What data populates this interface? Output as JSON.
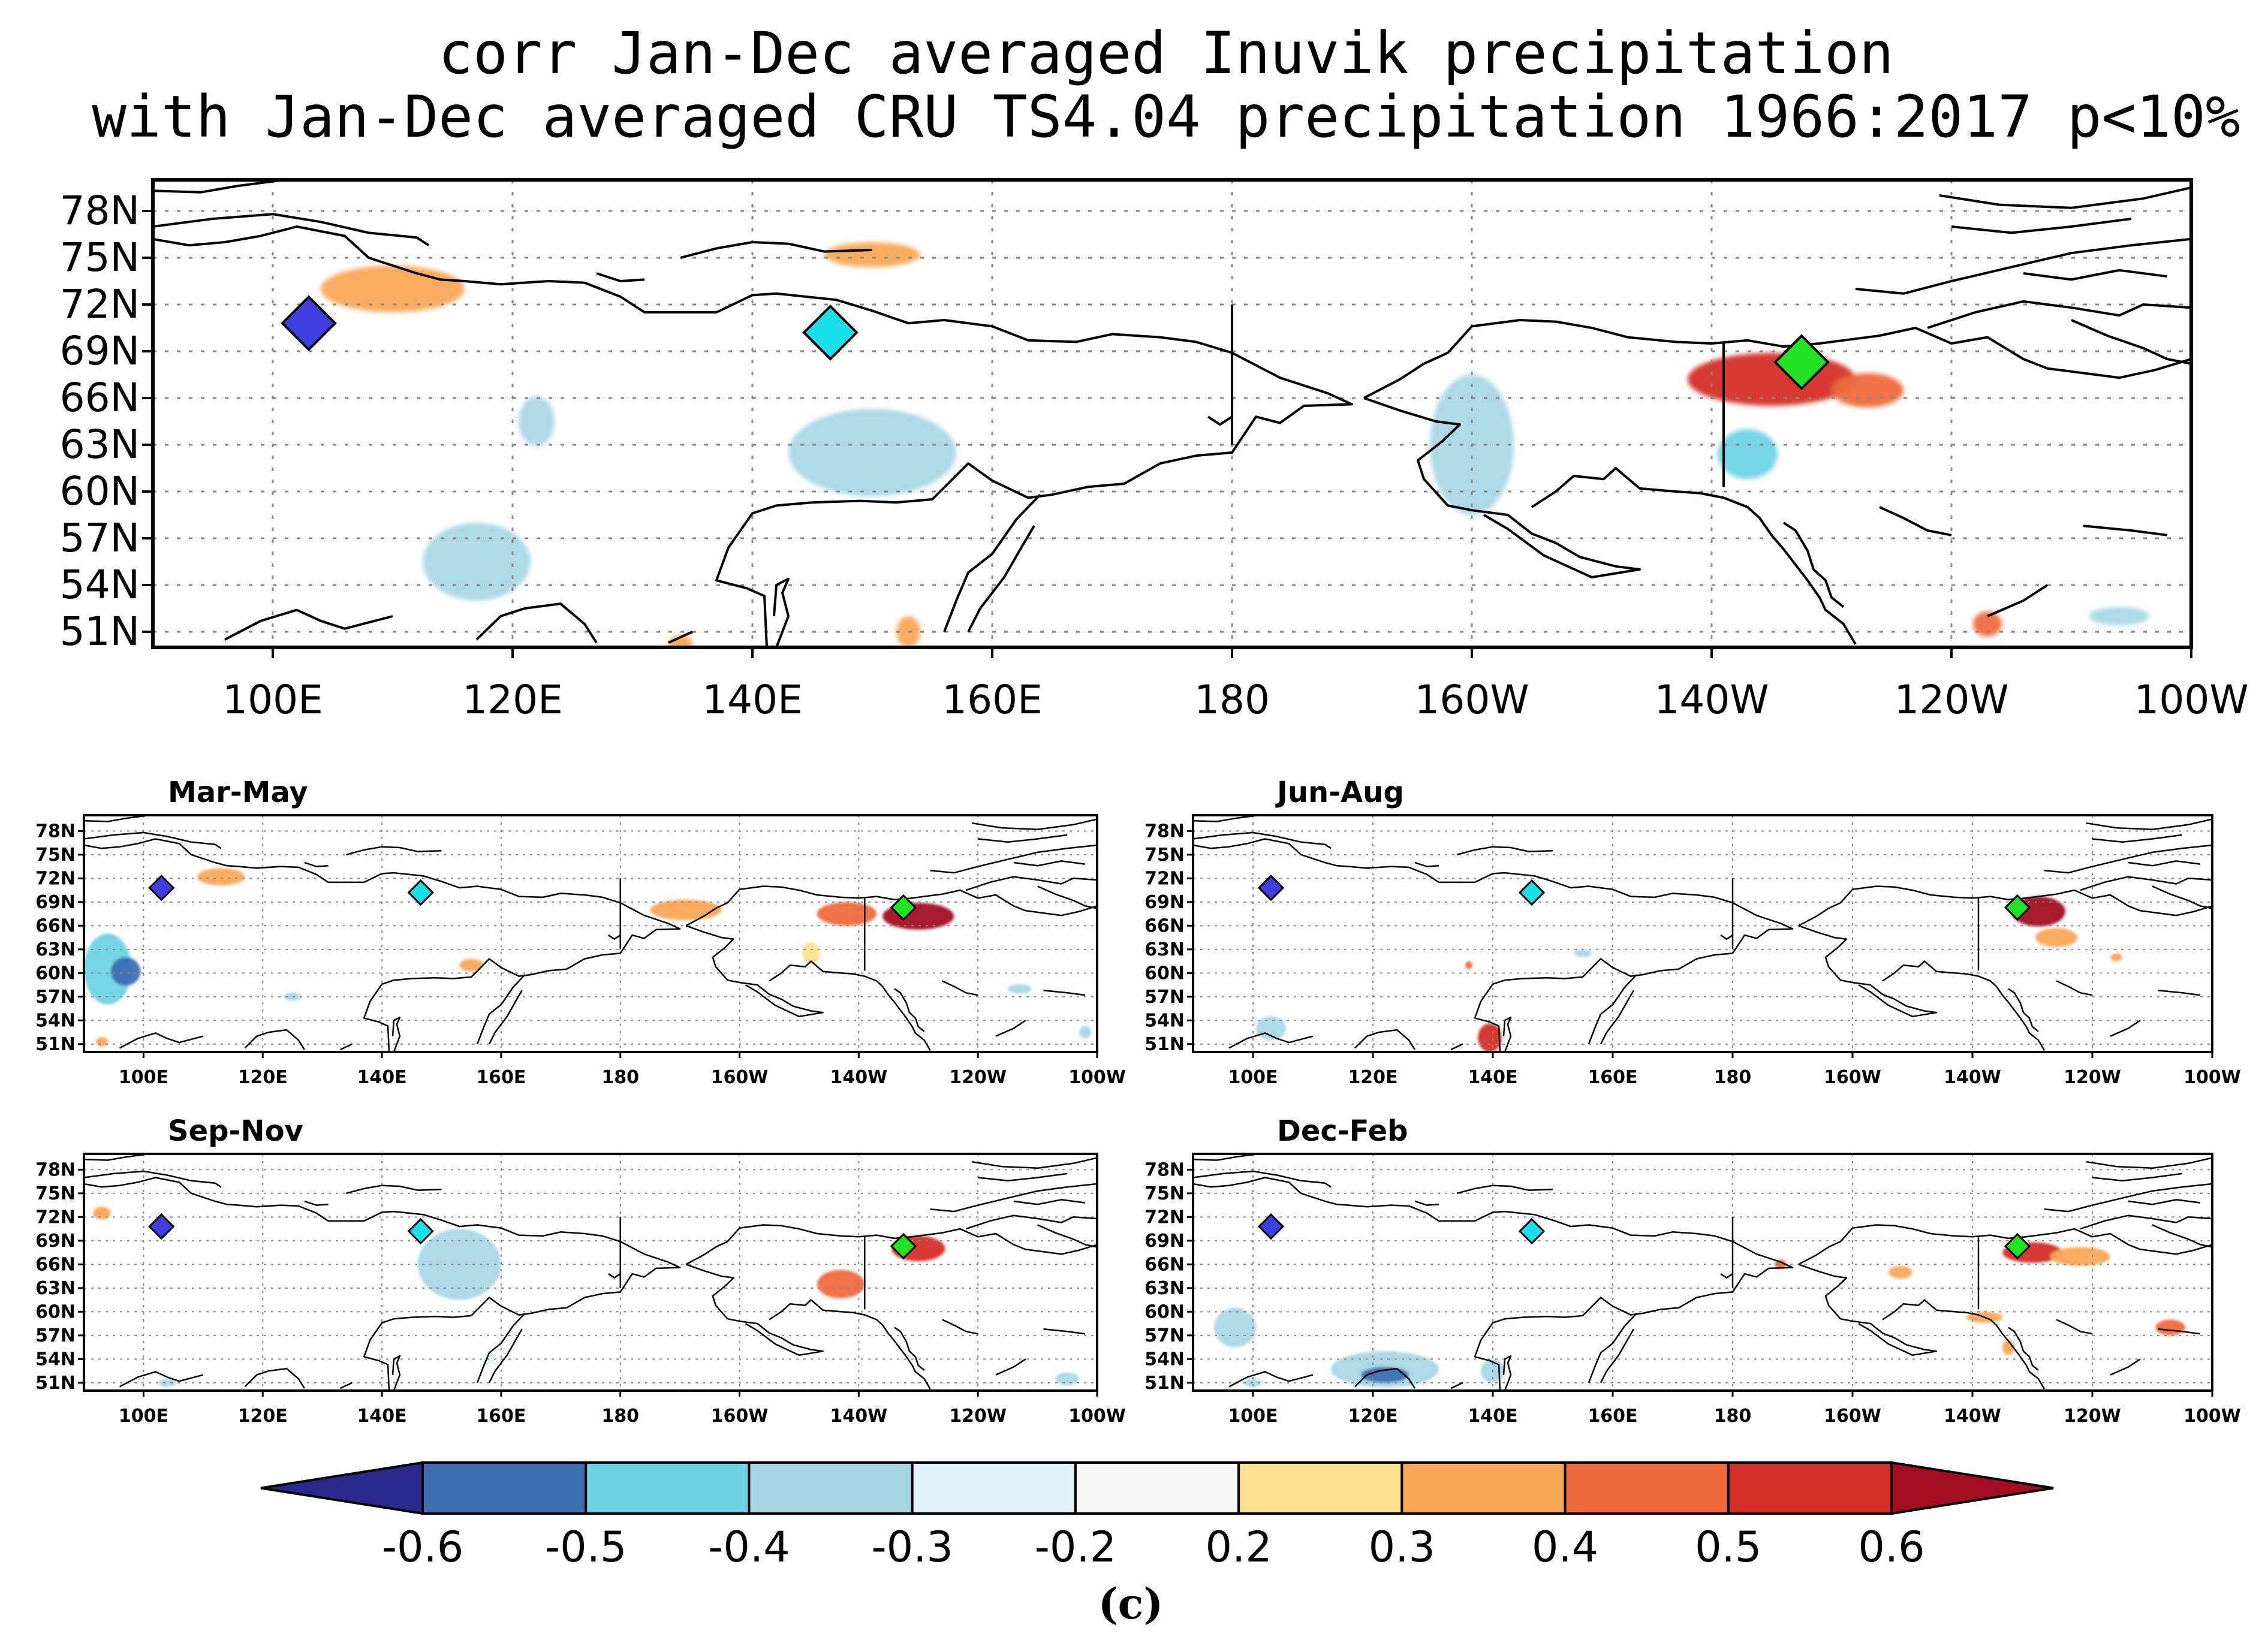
{
  "chart_data": {
    "type": "heatmap",
    "title_line1": "corr Jan-Dec averaged Inuvik precipitation",
    "title_line2": "with Jan-Dec averaged CRU TS4.04 precipitation 1966:2017 p<10%",
    "caption": "(c)",
    "lat_ticks": [
      "78N",
      "75N",
      "72N",
      "69N",
      "66N",
      "63N",
      "60N",
      "57N",
      "54N",
      "51N"
    ],
    "lat_values": [
      78,
      75,
      72,
      69,
      66,
      63,
      60,
      57,
      54,
      51
    ],
    "lon_ticks": [
      "100E",
      "120E",
      "140E",
      "160E",
      "180",
      "160W",
      "140W",
      "120W",
      "100W"
    ],
    "lon_values": [
      100,
      120,
      140,
      160,
      180,
      200,
      220,
      240,
      260
    ],
    "xlim": [
      90,
      260
    ],
    "ylim": [
      50,
      80
    ],
    "colorbar": {
      "levels": [
        "-0.6",
        "-0.5",
        "-0.4",
        "-0.3",
        "-0.2",
        "0.2",
        "0.3",
        "0.4",
        "0.5",
        "0.6"
      ],
      "colors": [
        "#2a2a8c",
        "#3e6fb2",
        "#6fd3e3",
        "#a9d6e5",
        "#e0f2f8",
        "#f7f7f7",
        "#fde08f",
        "#f9a656",
        "#ee6a3d",
        "#d42e28",
        "#a30d22"
      ]
    },
    "markers": [
      {
        "name": "blue-station",
        "lon": 103,
        "lat": 70.8,
        "color": "#3f3fe0"
      },
      {
        "name": "cyan-station",
        "lon": 146.5,
        "lat": 70.2,
        "color": "#18dfe8"
      },
      {
        "name": "green-station",
        "lon": 227.5,
        "lat": 68.3,
        "color": "#22e022"
      }
    ],
    "panels": [
      {
        "name": "annual",
        "label": "",
        "blobs": [
          {
            "lon": 110,
            "lat": 73.0,
            "rlon": 6,
            "rlat": 1.5,
            "c": 0.3
          },
          {
            "lon": 150,
            "lat": 75.2,
            "rlon": 4,
            "rlat": 0.8,
            "c": 0.3
          },
          {
            "lon": 122,
            "lat": 64.5,
            "rlon": 1.5,
            "rlat": 1.6,
            "c": -0.3
          },
          {
            "lon": 150,
            "lat": 62.5,
            "rlon": 7,
            "rlat": 2.8,
            "c": -0.3
          },
          {
            "lon": 117,
            "lat": 55.5,
            "rlon": 4.5,
            "rlat": 2.5,
            "c": -0.3
          },
          {
            "lon": 200,
            "lat": 63.0,
            "rlon": 3.5,
            "rlat": 4.5,
            "c": -0.3
          },
          {
            "lon": 225,
            "lat": 67.2,
            "rlon": 7,
            "rlat": 1.7,
            "c": 0.5
          },
          {
            "lon": 233,
            "lat": 66.5,
            "rlon": 3,
            "rlat": 1.1,
            "c": 0.4
          },
          {
            "lon": 223,
            "lat": 62.4,
            "rlon": 2.5,
            "rlat": 1.6,
            "c": -0.4
          },
          {
            "lon": 243,
            "lat": 51.5,
            "rlon": 1.2,
            "rlat": 0.8,
            "c": 0.4
          },
          {
            "lon": 254,
            "lat": 52.0,
            "rlon": 2.5,
            "rlat": 0.6,
            "c": -0.3
          },
          {
            "lon": 153,
            "lat": 51.0,
            "rlon": 1,
            "rlat": 1,
            "c": 0.3
          },
          {
            "lon": 134,
            "lat": 50.2,
            "rlon": 1,
            "rlat": 0.6,
            "c": 0.3
          }
        ]
      },
      {
        "name": "mam",
        "label": "Mar-May",
        "blobs": [
          {
            "lon": 94,
            "lat": 60.5,
            "rlon": 4,
            "rlat": 4.5,
            "c": -0.4
          },
          {
            "lon": 97,
            "lat": 60.2,
            "rlon": 2.5,
            "rlat": 1.8,
            "c": -0.5
          },
          {
            "lon": 113,
            "lat": 72.2,
            "rlon": 4,
            "rlat": 1.1,
            "c": 0.3
          },
          {
            "lon": 191,
            "lat": 68.0,
            "rlon": 6,
            "rlat": 1.3,
            "c": 0.3
          },
          {
            "lon": 155,
            "lat": 61.0,
            "rlon": 2,
            "rlat": 0.8,
            "c": 0.3
          },
          {
            "lon": 218,
            "lat": 67.5,
            "rlon": 5,
            "rlat": 1.5,
            "c": 0.4
          },
          {
            "lon": 230,
            "lat": 67.2,
            "rlon": 6,
            "rlat": 1.7,
            "c": 0.6
          },
          {
            "lon": 212,
            "lat": 62.5,
            "rlon": 1.5,
            "rlat": 1.4,
            "c": 0.2
          },
          {
            "lon": 125,
            "lat": 57.0,
            "rlon": 1.5,
            "rlat": 0.5,
            "c": -0.3
          },
          {
            "lon": 247,
            "lat": 58.0,
            "rlon": 2,
            "rlat": 0.6,
            "c": -0.3
          },
          {
            "lon": 93,
            "lat": 51.3,
            "rlon": 1,
            "rlat": 0.6,
            "c": 0.3
          },
          {
            "lon": 258,
            "lat": 52.5,
            "rlon": 1,
            "rlat": 0.8,
            "c": -0.3
          }
        ]
      },
      {
        "name": "jja",
        "label": "Jun-Aug",
        "blobs": [
          {
            "lon": 231,
            "lat": 67.8,
            "rlon": 4.5,
            "rlat": 1.9,
            "c": 0.6
          },
          {
            "lon": 234,
            "lat": 64.5,
            "rlon": 3.5,
            "rlat": 1.2,
            "c": 0.3
          },
          {
            "lon": 139.5,
            "lat": 51.8,
            "rlon": 2,
            "rlat": 1.8,
            "c": 0.5
          },
          {
            "lon": 103,
            "lat": 53.0,
            "rlon": 2.5,
            "rlat": 1.5,
            "c": -0.3
          },
          {
            "lon": 155,
            "lat": 62.5,
            "rlon": 1.5,
            "rlat": 0.5,
            "c": -0.3
          },
          {
            "lon": 244,
            "lat": 62.0,
            "rlon": 1,
            "rlat": 0.5,
            "c": 0.3
          },
          {
            "lon": 136,
            "lat": 61.0,
            "rlon": 0.6,
            "rlat": 0.5,
            "c": 0.4
          }
        ]
      },
      {
        "name": "son",
        "label": "Sep-Nov",
        "blobs": [
          {
            "lon": 153,
            "lat": 66.0,
            "rlon": 7,
            "rlat": 4.5,
            "c": -0.3
          },
          {
            "lon": 230,
            "lat": 68.0,
            "rlon": 4.5,
            "rlat": 1.6,
            "c": 0.5
          },
          {
            "lon": 217,
            "lat": 63.5,
            "rlon": 4,
            "rlat": 1.8,
            "c": 0.4
          },
          {
            "lon": 93,
            "lat": 72.5,
            "rlon": 1.5,
            "rlat": 0.8,
            "c": 0.3
          },
          {
            "lon": 255,
            "lat": 51.5,
            "rlon": 2,
            "rlat": 0.8,
            "c": -0.3
          },
          {
            "lon": 104,
            "lat": 51.0,
            "rlon": 1.5,
            "rlat": 0.5,
            "c": -0.3
          },
          {
            "lon": 158,
            "lat": 54.0,
            "rlon": 1,
            "rlat": 0.8,
            "c": -0.2
          }
        ]
      },
      {
        "name": "djf",
        "label": "Dec-Feb",
        "blobs": [
          {
            "lon": 97,
            "lat": 58.0,
            "rlon": 3.5,
            "rlat": 2.5,
            "c": -0.3
          },
          {
            "lon": 122,
            "lat": 52.7,
            "rlon": 9,
            "rlat": 2.3,
            "c": -0.3
          },
          {
            "lon": 122,
            "lat": 52.0,
            "rlon": 4,
            "rlat": 1.0,
            "c": -0.5
          },
          {
            "lon": 140,
            "lat": 52.5,
            "rlon": 2,
            "rlat": 1.5,
            "c": -0.3
          },
          {
            "lon": 230,
            "lat": 67.5,
            "rlon": 5,
            "rlat": 1.3,
            "c": 0.5
          },
          {
            "lon": 238,
            "lat": 67.0,
            "rlon": 5,
            "rlat": 1.2,
            "c": 0.3
          },
          {
            "lon": 208,
            "lat": 65.0,
            "rlon": 2,
            "rlat": 0.8,
            "c": 0.3
          },
          {
            "lon": 222,
            "lat": 59.3,
            "rlon": 3,
            "rlat": 0.7,
            "c": 0.3
          },
          {
            "lon": 226,
            "lat": 55.5,
            "rlon": 1,
            "rlat": 1.0,
            "c": 0.3
          },
          {
            "lon": 253,
            "lat": 58.0,
            "rlon": 2.5,
            "rlat": 1.0,
            "c": 0.4
          },
          {
            "lon": 188,
            "lat": 66.0,
            "rlon": 1,
            "rlat": 0.6,
            "c": 0.4
          },
          {
            "lon": 100,
            "lat": 51.0,
            "rlon": 1.5,
            "rlat": 0.5,
            "c": -0.3
          }
        ]
      }
    ]
  }
}
